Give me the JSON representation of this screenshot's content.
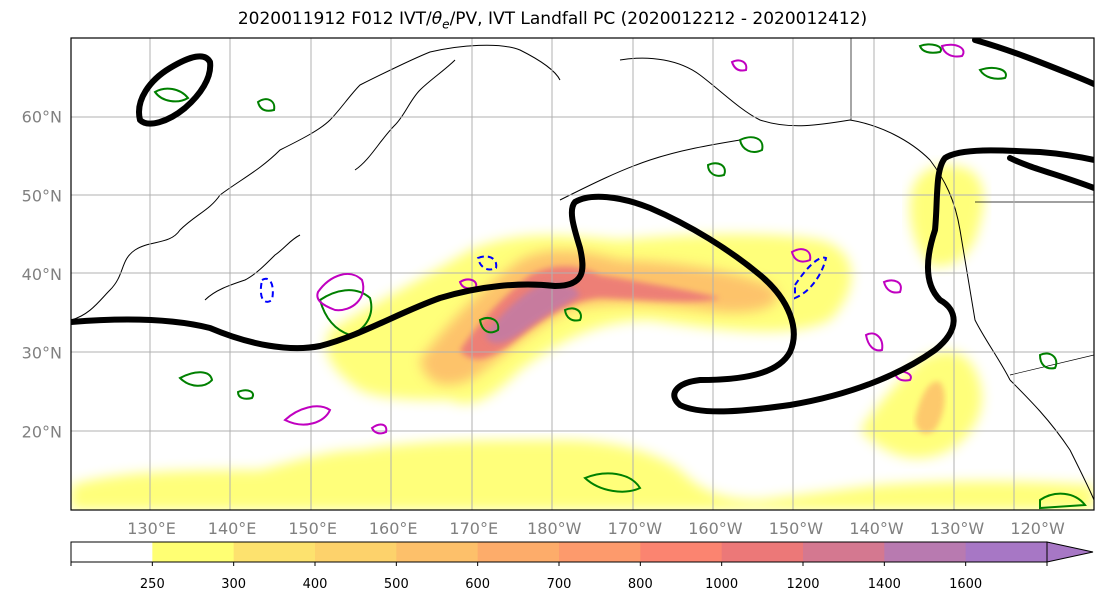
{
  "title": "2020011912 F012 IVT/θe/PV, IVT Landfall PC (2020012212 - 2020012412)",
  "title_parts": {
    "prefix": "2020011912 F012 IVT/",
    "theta": "θ",
    "theta_sub": "e",
    "suffix": "/PV, IVT Landfall PC (2020012212 - 2020012412)"
  },
  "lat_labels": [
    "60°N",
    "50°N",
    "40°N",
    "30°N",
    "20°N"
  ],
  "lat_values": [
    60,
    50,
    40,
    30,
    20
  ],
  "lon_labels": [
    "130°E",
    "140°E",
    "150°E",
    "160°E",
    "170°E",
    "180°W",
    "170°W",
    "160°W",
    "150°W",
    "140°W",
    "130°W",
    "120°W"
  ],
  "lon_values": [
    130,
    140,
    150,
    160,
    170,
    180,
    190,
    200,
    210,
    220,
    230,
    240
  ],
  "colorbar": {
    "ticks": [
      "250",
      "300",
      "400",
      "500",
      "600",
      "700",
      "800",
      "1000",
      "1200",
      "1400",
      "1600"
    ],
    "colors": [
      "#ffffff",
      "#ffff73",
      "#fde26e",
      "#fdd26b",
      "#fdc06a",
      "#fdac6a",
      "#fd9a6c",
      "#fb8470",
      "#ec7878",
      "#d47890",
      "#b87ab0",
      "#a777c5"
    ],
    "extend": "max"
  },
  "legend_colors": {
    "ivt_low": "#ffff73",
    "ivt_mid": "#fdc06a",
    "ivt_high": "#ec7878",
    "ivt_peak": "#b87ab0",
    "landfall_pc": "#000000",
    "theta_e": "#008000",
    "pv_positive": "#c000c0",
    "pv_negative": "#0000ff",
    "gridline": "#b0b0b0"
  },
  "chart_data": {
    "type": "map",
    "projection": "PlateCarree",
    "lon_range": [
      120,
      247
    ],
    "lat_range": [
      10,
      70
    ],
    "grid": true,
    "fields": [
      "IVT shaded",
      "IVT Landfall PC contour (black)",
      "θe contours (green)",
      "PV contours (magenta/blue)"
    ],
    "colorbar_levels": [
      250,
      300,
      400,
      500,
      600,
      700,
      800,
      1000,
      1200,
      1400,
      1600
    ]
  }
}
